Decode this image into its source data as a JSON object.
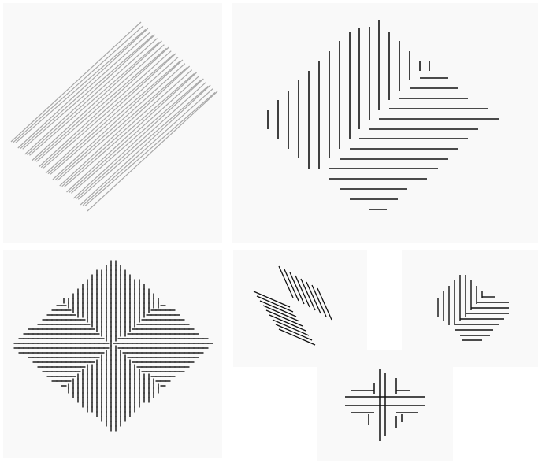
{
  "figure": {
    "stroke_color": "#111111",
    "light_stroke_color": "#a8a8a8",
    "background_color": "#f9f9f9",
    "panels": [
      {
        "id": "diagonal-hatch-rectangle",
        "pattern": "parallel-diagonal-lines"
      },
      {
        "id": "nested-corner-lines-large",
        "pattern": "vertical-and-horizontal-staircase"
      },
      {
        "id": "dense-tick-diamond",
        "pattern": "short-tick-texture"
      },
      {
        "id": "diagonal-chevron-small",
        "pattern": "rotated-line-clusters"
      },
      {
        "id": "nested-corner-lines-small",
        "pattern": "vertical-and-horizontal-staircase"
      },
      {
        "id": "cross-junction-lines",
        "pattern": "four-quadrant-cross"
      }
    ]
  }
}
